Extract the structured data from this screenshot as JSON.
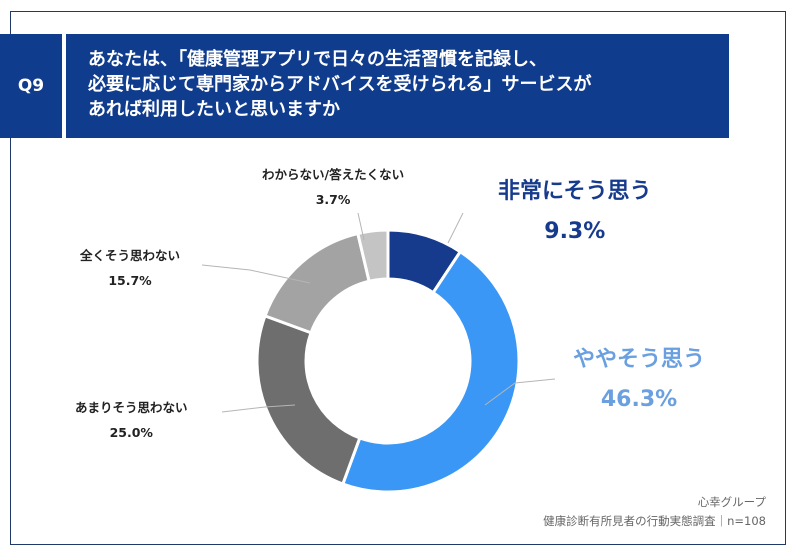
{
  "header": {
    "question_no": "Q9",
    "question_lines": [
      "あなたは、「健康管理アプリで日々の生活習慣を記録し、",
      "必要に応じて専門家からアドバイスを受けられる」サービスが",
      "あれば利用したいと思いますか"
    ]
  },
  "colors": {
    "header_bg": "#103c8e",
    "slices": [
      "#163a8c",
      "#3b97f5",
      "#6e6e6e",
      "#a3a3a3",
      "#c4c4c4"
    ],
    "highlight_text": [
      "#163a8c",
      "#6a9fe0"
    ]
  },
  "chart_data": {
    "type": "pie",
    "donut": true,
    "title": "",
    "slices": [
      {
        "label": "非常にそう思う",
        "value": 9.3,
        "value_label": "9.3%"
      },
      {
        "label": "ややそう思う",
        "value": 46.3,
        "value_label": "46.3%"
      },
      {
        "label": "あまりそう思わない",
        "value": 25.0,
        "value_label": "25.0%"
      },
      {
        "label": "全くそう思わない",
        "value": 15.7,
        "value_label": "15.7%"
      },
      {
        "label": "わからない/答えたくない",
        "value": 3.7,
        "value_label": "3.7%"
      }
    ]
  },
  "footer": {
    "company": "心幸グループ",
    "survey": "健康診断有所見者の行動実態調査｜n=108"
  }
}
